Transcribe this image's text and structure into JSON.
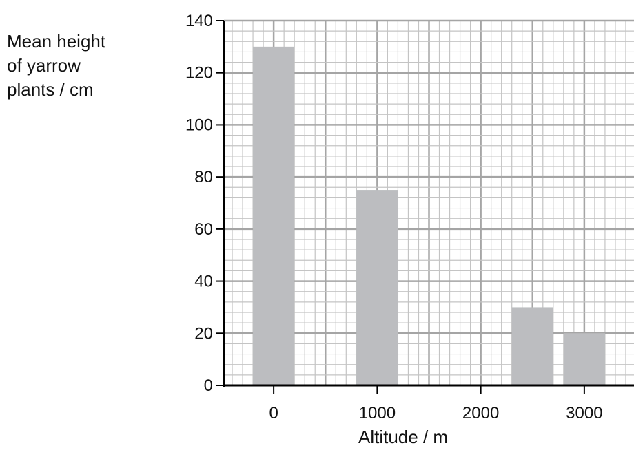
{
  "chart_data": {
    "type": "bar",
    "title": "",
    "ylabel_lines": [
      "Mean height",
      "of yarrow",
      "plants / cm"
    ],
    "xlabel": "Altitude / m",
    "x": [
      0,
      1000,
      2500,
      3000
    ],
    "values": [
      130,
      75,
      30,
      20
    ],
    "bar_width": 400,
    "xlim": [
      -480,
      3480
    ],
    "ylim": [
      0,
      140
    ],
    "y_ticks": [
      0,
      20,
      40,
      60,
      80,
      100,
      120,
      140
    ],
    "x_ticks": [
      0,
      1000,
      2000,
      3000
    ],
    "x_tick_labels": [
      "0",
      "1000",
      "2000",
      "3000"
    ],
    "grid": true,
    "colors": {
      "bar": "#bcbdc0",
      "grid_major": "#a5a5a5",
      "grid_minor": "#c4c4c4",
      "axis": "#000000"
    }
  }
}
